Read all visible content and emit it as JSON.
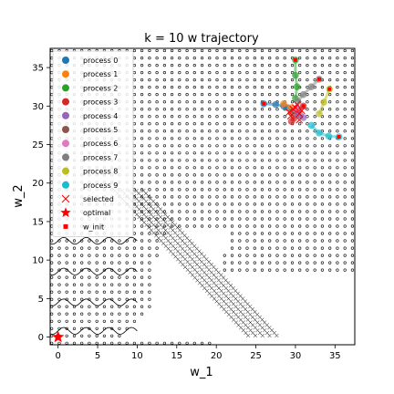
{
  "chart_data": {
    "type": "scatter",
    "title": "k = 10 w trajectory",
    "xlabel": "w_1",
    "ylabel": "w_2",
    "xlim": [
      -1,
      37.5
    ],
    "ylim": [
      -1,
      37.5
    ],
    "xticks": [
      "0",
      "5",
      "10",
      "15",
      "20",
      "25",
      "30",
      "35"
    ],
    "yticks": [
      "0",
      "5",
      "10",
      "15",
      "20",
      "25",
      "30",
      "35"
    ],
    "legend_position": "upper-left",
    "grid": false,
    "background": "dense small circle markers over a wavy contour pattern",
    "series": [
      {
        "name": "process 0",
        "color": "#1f77b4",
        "points": [
          [
            26,
            30.3
          ],
          [
            27.5,
            30.2
          ],
          [
            28.5,
            30.0
          ],
          [
            29.0,
            29.8
          ]
        ]
      },
      {
        "name": "process 1",
        "color": "#ff7f0e",
        "points": [
          [
            28.5,
            30.3
          ],
          [
            29.5,
            29.8
          ],
          [
            30.0,
            29.5
          ]
        ]
      },
      {
        "name": "process 2",
        "color": "#2ca02c",
        "points": [
          [
            30,
            36
          ],
          [
            30,
            34
          ],
          [
            30.2,
            32.5
          ],
          [
            30.0,
            31.0
          ]
        ]
      },
      {
        "name": "process 3",
        "color": "#d62728",
        "points": [
          [
            31,
            30
          ],
          [
            30.3,
            29.2
          ],
          [
            29.8,
            28.4
          ],
          [
            29.5,
            28.0
          ]
        ]
      },
      {
        "name": "process 4",
        "color": "#9467bd",
        "points": [
          [
            31,
            28.5
          ],
          [
            30.6,
            28.8
          ],
          [
            30.2,
            29.0
          ]
        ]
      },
      {
        "name": "process 5",
        "color": "#8c564b",
        "points": [
          [
            29.5,
            29.2
          ],
          [
            29.8,
            29.4
          ]
        ]
      },
      {
        "name": "process 6",
        "color": "#e377c2",
        "points": [
          [
            30.2,
            29.8
          ],
          [
            30.0,
            29.6
          ]
        ]
      },
      {
        "name": "process 7",
        "color": "#7f7f7f",
        "points": [
          [
            33,
            33.5
          ],
          [
            32.0,
            32.5
          ],
          [
            31.0,
            31.5
          ],
          [
            30.3,
            30.6
          ]
        ]
      },
      {
        "name": "process 8",
        "color": "#bcbd22",
        "points": [
          [
            34.3,
            32.2
          ],
          [
            33.6,
            30.5
          ],
          [
            33.0,
            29.0
          ]
        ]
      },
      {
        "name": "process 9",
        "color": "#17becf",
        "points": [
          [
            35.5,
            26.0
          ],
          [
            34.2,
            26.1
          ],
          [
            33.0,
            26.5
          ],
          [
            32.0,
            27.5
          ]
        ]
      }
    ],
    "selected": [
      [
        30.0,
        29.8
      ],
      [
        30.5,
        29.0
      ],
      [
        29.4,
        28.7
      ],
      [
        30.2,
        30.2
      ],
      [
        30.8,
        29.4
      ],
      [
        29.7,
        29.6
      ],
      [
        30.5,
        28.2
      ],
      [
        29.2,
        29.2
      ]
    ],
    "optimal": [
      0,
      0
    ],
    "w_init": [
      [
        26,
        30.3
      ],
      [
        30,
        36
      ],
      [
        31,
        30
      ],
      [
        33,
        33.5
      ],
      [
        34.3,
        32.2
      ],
      [
        35.5,
        26.0
      ]
    ],
    "legend": [
      {
        "label": "process 0",
        "marker": "circle",
        "color": "#1f77b4"
      },
      {
        "label": "process 1",
        "marker": "circle",
        "color": "#ff7f0e"
      },
      {
        "label": "process 2",
        "marker": "circle",
        "color": "#2ca02c"
      },
      {
        "label": "process 3",
        "marker": "circle",
        "color": "#d62728"
      },
      {
        "label": "process 4",
        "marker": "circle",
        "color": "#9467bd"
      },
      {
        "label": "process 5",
        "marker": "circle",
        "color": "#8c564b"
      },
      {
        "label": "process 6",
        "marker": "circle",
        "color": "#e377c2"
      },
      {
        "label": "process 7",
        "marker": "circle",
        "color": "#7f7f7f"
      },
      {
        "label": "process 8",
        "marker": "circle",
        "color": "#bcbd22"
      },
      {
        "label": "process 9",
        "marker": "circle",
        "color": "#17becf"
      },
      {
        "label": "selected",
        "marker": "x",
        "color": "#ff0000"
      },
      {
        "label": "optimal",
        "marker": "star",
        "color": "#ff0000"
      },
      {
        "label": "w_init",
        "marker": "square",
        "color": "#ff0000"
      }
    ]
  }
}
